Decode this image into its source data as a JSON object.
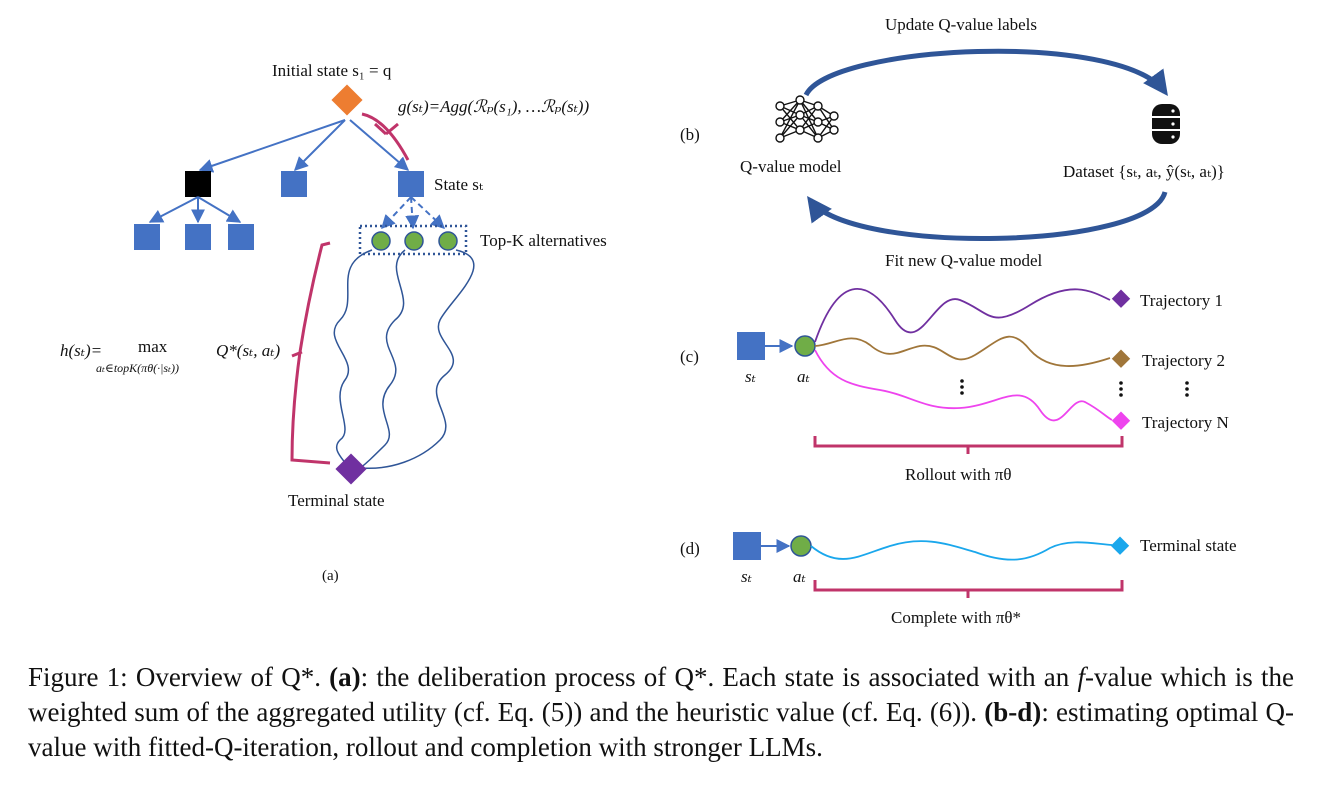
{
  "panel_a": {
    "initial_state": "Initial state s₁ = q",
    "g_formula": "g(sₜ)=Agg(ℛₚ(s₁), …ℛₚ(sₜ))",
    "state_st": "State sₜ",
    "top_k": "Top-K alternatives",
    "h_lhs": "h(sₜ)=",
    "h_max": "max",
    "h_sub": "aₜ∈topK(πθ(·|sₜ))",
    "h_rhs": "Q*(sₜ, aₜ)",
    "terminal_state": "Terminal state",
    "tag": "(a)"
  },
  "panel_b": {
    "tag": "(b)",
    "update_label": "Update Q-value labels",
    "fit_label": "Fit new Q-value model",
    "qmodel_label": "Q-value model",
    "dataset_label": "Dataset {sₜ, aₜ, ŷ(sₜ, aₜ)}"
  },
  "panel_c": {
    "tag": "(c)",
    "st": "sₜ",
    "at": "aₜ",
    "traj1": "Trajectory 1",
    "traj2": "Trajectory 2",
    "trajN": "Trajectory N",
    "rollout": "Rollout with πθ"
  },
  "panel_d": {
    "tag": "(d)",
    "st": "sₜ",
    "at": "aₜ",
    "terminal": "Terminal state",
    "complete": "Complete with πθ*"
  },
  "caption": {
    "label": "Figure 1: Overview of Q*.",
    "part_a": "(a)",
    "text_a1": ": the deliberation process of Q*. Each state is associated with an",
    "f": "f",
    "text_a2": "-value which is the weighted sum of the aggregated utility (cf. Eq. (5)) and the heuristic value (cf. Eq. (6)).",
    "part_bd": "(b-d)",
    "text_bd": ": estimating optimal Q-value with fitted-Q-iteration, rollout and completion with stronger LLMs."
  },
  "colors": {
    "blue": "#4472C4",
    "orange": "#ED7D31",
    "black": "#000000",
    "green": "#70AD47",
    "purple": "#7030A0",
    "brown": "#A0763A",
    "pink": "#EE44EE",
    "cyan": "#1AA7EC",
    "magenta": "#C0346A",
    "navy": "#2F5597"
  }
}
